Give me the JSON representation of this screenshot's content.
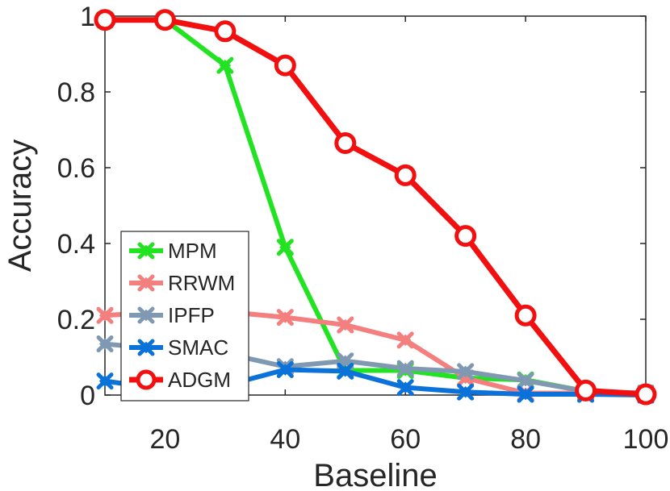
{
  "chart_data": {
    "type": "line",
    "xlabel": "Baseline",
    "ylabel": "Accuracy",
    "x": [
      10,
      20,
      30,
      40,
      50,
      60,
      70,
      80,
      90,
      100
    ],
    "xlim": [
      10,
      100
    ],
    "ylim": [
      0,
      1
    ],
    "xticks": [
      20,
      40,
      60,
      80,
      100
    ],
    "yticks": [
      0,
      0.2,
      0.4,
      0.6,
      0.8,
      1
    ],
    "xtick_labels": [
      "20",
      "40",
      "60",
      "80",
      "100"
    ],
    "ytick_labels": [
      "0",
      "0.2",
      "0.4",
      "0.6",
      "0.8",
      "1"
    ],
    "grid": false,
    "legend_position": "bottom-left",
    "series": [
      {
        "name": "MPM",
        "color": "#22e322",
        "marker": "x-cross",
        "values": [
          0.99,
          0.99,
          0.87,
          0.39,
          0.065,
          0.065,
          0.045,
          0.04,
          0.01,
          0.0
        ]
      },
      {
        "name": "RRWM",
        "color": "#f47f7f",
        "marker": "x-cross",
        "values": [
          0.21,
          0.22,
          0.22,
          0.205,
          0.185,
          0.145,
          0.045,
          0.005,
          0.005,
          0.0
        ]
      },
      {
        "name": "IPFP",
        "color": "#7f99b3",
        "marker": "x-cross",
        "values": [
          0.135,
          0.12,
          0.11,
          0.075,
          0.09,
          0.07,
          0.062,
          0.038,
          0.01,
          0.005
        ]
      },
      {
        "name": "SMAC",
        "color": "#0b72d9",
        "marker": "x-cross",
        "values": [
          0.037,
          0.015,
          0.025,
          0.067,
          0.063,
          0.02,
          0.008,
          0.002,
          0.002,
          0.0
        ]
      },
      {
        "name": "ADGM",
        "color": "#f20f0f",
        "marker": "circle",
        "values": [
          0.99,
          0.99,
          0.96,
          0.87,
          0.665,
          0.58,
          0.42,
          0.21,
          0.012,
          0.002
        ]
      }
    ]
  }
}
